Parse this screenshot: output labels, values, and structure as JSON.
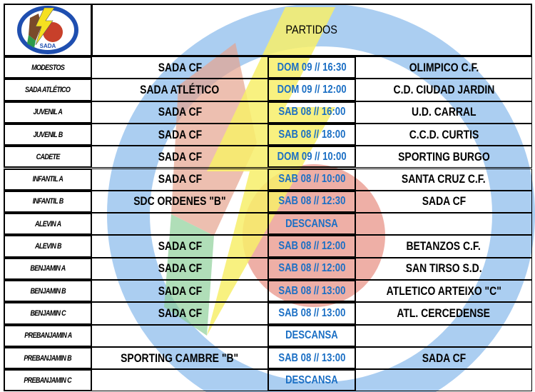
{
  "header": {
    "title": "PARTIDOS",
    "logo_text": "SADA C.F."
  },
  "colors": {
    "time_text": "#1b6fc4",
    "watermark_blue": "#9cc6ee",
    "watermark_yellow": "#f7ee6a",
    "watermark_red": "#e07a6a"
  },
  "rows": [
    {
      "category": "MODESTOS",
      "home": "SADA CF",
      "time": "DOM 09 // 16:30",
      "away": "OLIMPICO C.F."
    },
    {
      "category": "SADA ATLÉTICO",
      "home": "SADA ATLÉTICO",
      "time": "DOM 09 // 12:00",
      "away": "C.D. CIUDAD JARDIN"
    },
    {
      "category": "JUVENIL A",
      "home": "SADA CF",
      "time": "SAB 08 // 16:00",
      "away": "U.D. CARRAL"
    },
    {
      "category": "JUVENIL B",
      "home": "SADA CF",
      "time": "SAB 08 // 18:00",
      "away": "C.C.D. CURTIS"
    },
    {
      "category": "CADETE",
      "home": "SADA CF",
      "time": "DOM 09 // 10:00",
      "away": "SPORTING BURGO"
    },
    {
      "category": "INFANTIL A",
      "home": "SADA CF",
      "time": "SAB 08 // 10:00",
      "away": "SANTA CRUZ C.F."
    },
    {
      "category": "INFANTIL B",
      "home": "SDC ORDENES \"B\"",
      "time": "SAB 08 // 12:30",
      "away": "SADA CF"
    },
    {
      "category": "ALEVIN A",
      "home": "",
      "time": "DESCANSA",
      "away": ""
    },
    {
      "category": "ALEVIN B",
      "home": "SADA CF",
      "time": "SAB 08 // 12:00",
      "away": "BETANZOS C.F."
    },
    {
      "category": "BENJAMIN A",
      "home": "SADA CF",
      "time": "SAB 08 // 12:00",
      "away": "SAN TIRSO S.D."
    },
    {
      "category": "BENJAMIN B",
      "home": "SADA CF",
      "time": "SAB 08 // 13:00",
      "away": "ATLETICO ARTEIXO \"C\""
    },
    {
      "category": "BENJAMIN C",
      "home": "SADA CF",
      "time": "SAB 08 // 13:00",
      "away": "ATL. CERCEDENSE"
    },
    {
      "category": "PREBANJAMIN A",
      "home": "",
      "time": "DESCANSA",
      "away": ""
    },
    {
      "category": "PREBANJAMIN B",
      "home": "SPORTING CAMBRE \"B\"",
      "time": "SAB 08 // 13:00",
      "away": "SADA CF"
    },
    {
      "category": "PREBANJAMIN C",
      "home": "",
      "time": "DESCANSA",
      "away": ""
    }
  ]
}
